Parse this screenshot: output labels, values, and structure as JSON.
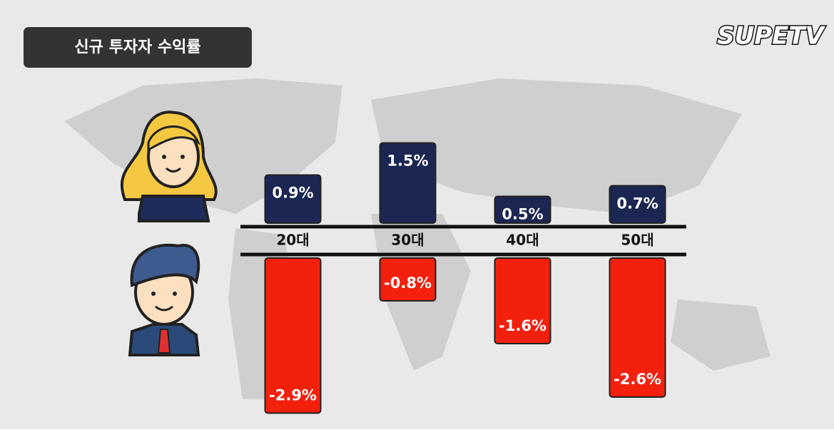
{
  "logo": "SUPETV",
  "chart_data": {
    "type": "bar",
    "title": "신규 투자자 수익률",
    "categories": [
      "20대",
      "30대",
      "40대",
      "50대"
    ],
    "series": [
      {
        "color": "#1b2652",
        "values": [
          0.9,
          1.5,
          0.5,
          0.7
        ],
        "value_labels": [
          "0.9%",
          "1.5%",
          "0.5%",
          "0.7%"
        ]
      },
      {
        "color": "#f3200e",
        "values": [
          -2.9,
          -0.8,
          -1.6,
          -2.6
        ],
        "value_labels": [
          "-2.9%",
          "-0.8%",
          "-1.6%",
          "-2.6%"
        ]
      }
    ]
  }
}
